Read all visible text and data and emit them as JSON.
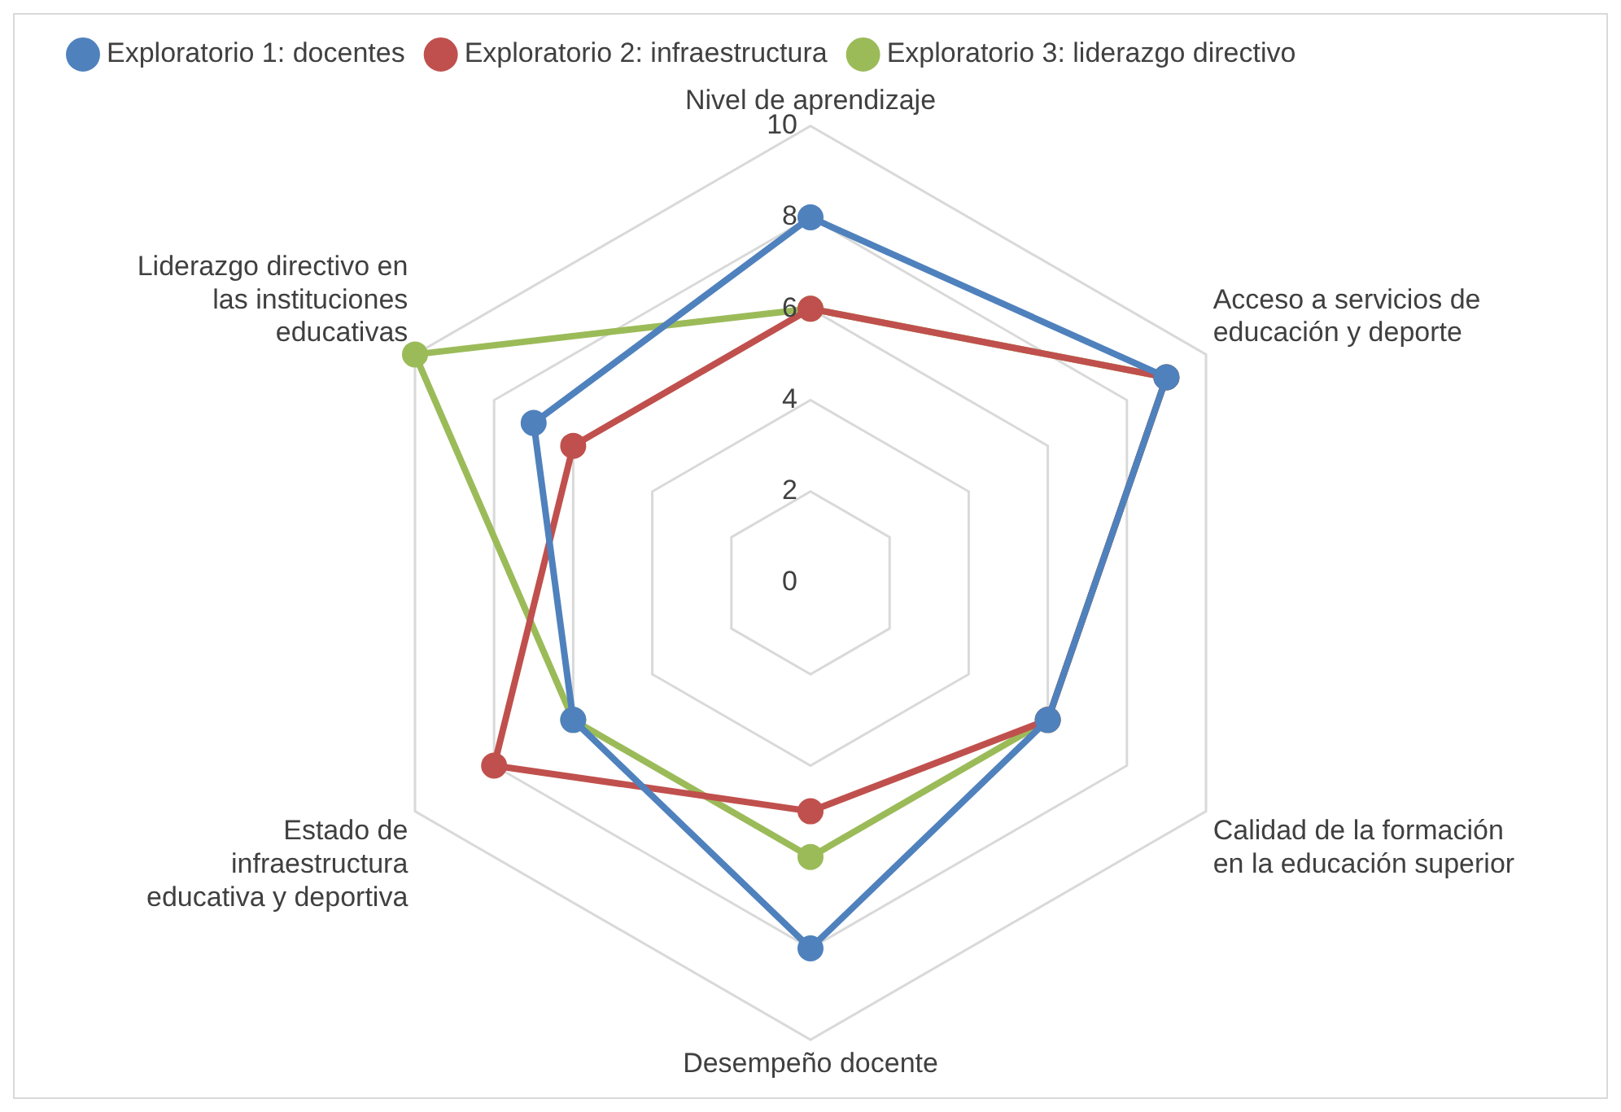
{
  "chart_data": {
    "type": "radar",
    "categories": [
      "Nivel de aprendizaje",
      "Acceso a servicios de educación y deporte",
      "Calidad de la formación en la educación superior",
      "Desempeño docente",
      "Estado de infraestructura educativa y deportiva",
      "Liderazgo directivo en las instituciones educativas"
    ],
    "series": [
      {
        "name": "Exploratorio 1: docentes",
        "color": "#4f81bd",
        "values": [
          8,
          9,
          6,
          8,
          6,
          7
        ]
      },
      {
        "name": "Exploratorio 2: infraestructura",
        "color": "#c0504d",
        "values": [
          6,
          9,
          6,
          5,
          8,
          6
        ]
      },
      {
        "name": "Exploratorio 3: liderazgo directivo",
        "color": "#9bbb59",
        "values": [
          6,
          9,
          6,
          6,
          6,
          10
        ]
      }
    ],
    "ylim": [
      0,
      10
    ],
    "yticks": [
      0,
      2,
      4,
      6,
      8,
      10
    ],
    "grid": true,
    "legend": "top left",
    "marker": "circle",
    "line_style": "solid"
  }
}
